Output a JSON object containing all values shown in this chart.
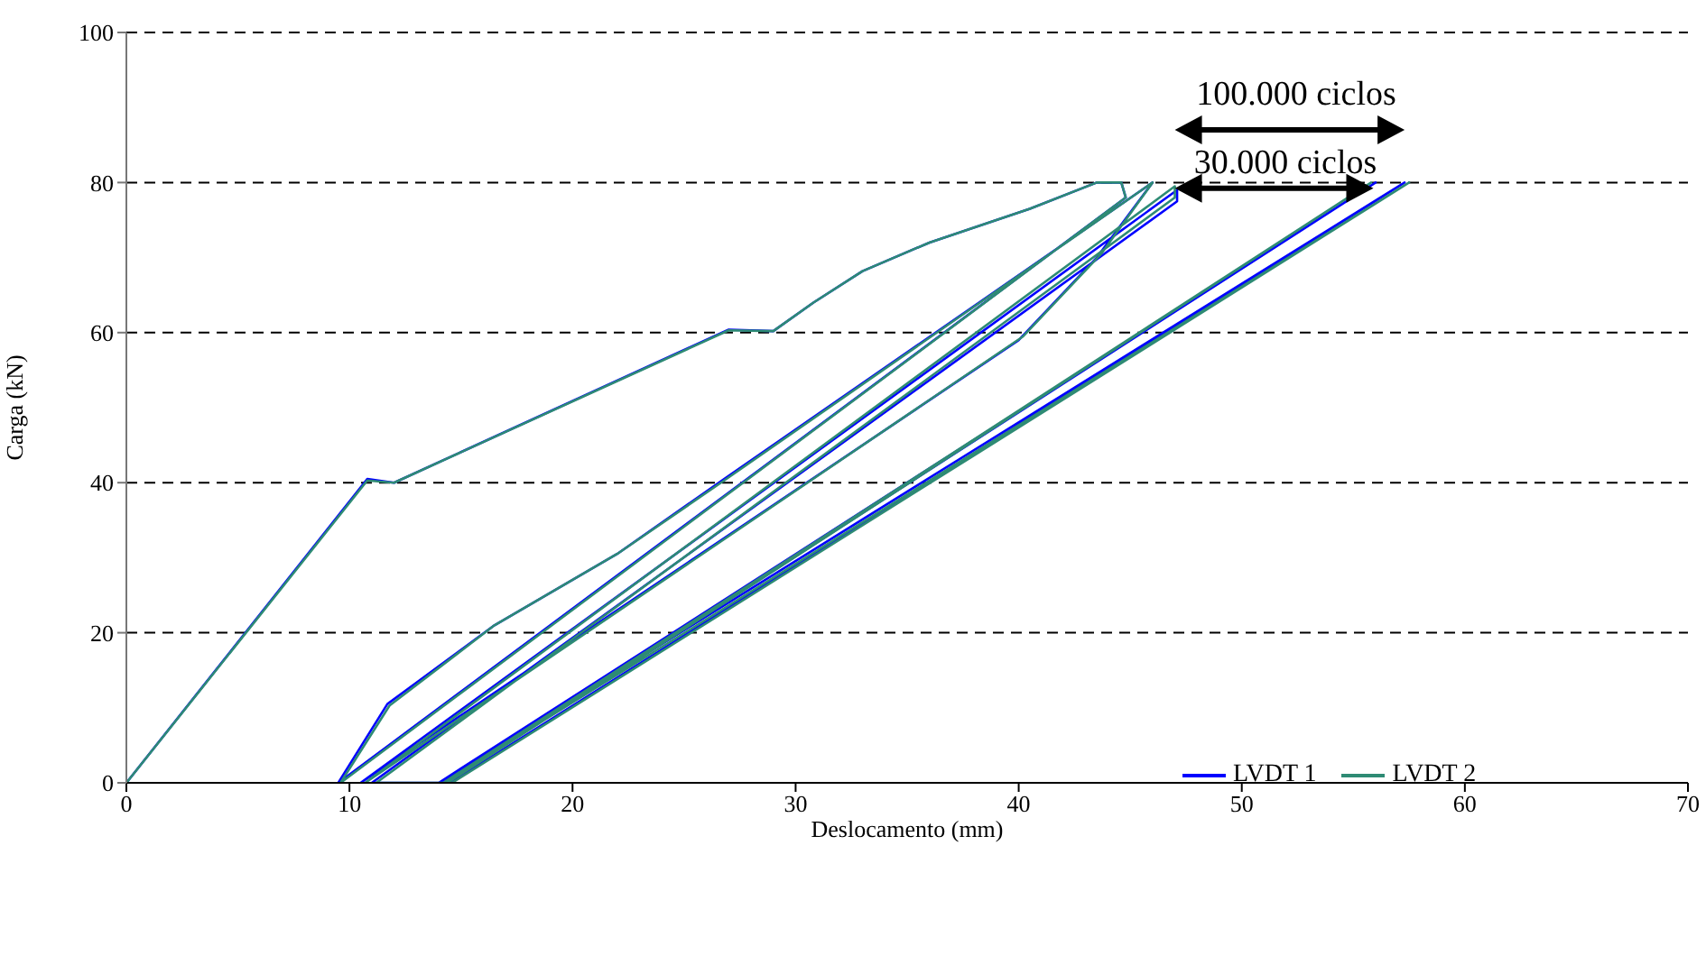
{
  "chart_data": {
    "type": "line",
    "xlabel": "Deslocamento (mm)",
    "ylabel": "Carga (kN)",
    "xlim": [
      0,
      70
    ],
    "xticks": [
      0,
      10,
      20,
      30,
      40,
      50,
      60,
      70
    ],
    "ylim": [
      0,
      100
    ],
    "yticks": [
      0,
      20,
      40,
      60,
      80,
      100
    ],
    "grid": "y",
    "legend": "bottom right",
    "marker": "none",
    "line_style": "solid",
    "series": [
      {
        "name": "LVDT 1",
        "color": "#0000ff",
        "x": [
          0,
          10.8,
          12,
          27,
          29,
          30.8,
          33,
          36,
          40.5,
          43.5,
          44.6,
          44.8,
          9.5,
          11.7,
          16.5,
          22,
          26.8,
          46,
          43.5,
          40,
          10.5,
          47.1,
          47.1,
          11,
          14.2,
          56,
          14,
          57.3,
          14.5
        ],
        "values": [
          0,
          40.5,
          40,
          60.4,
          60.2,
          64,
          68.2,
          72,
          76.5,
          80,
          80,
          78,
          0,
          10.5,
          21,
          30.5,
          40.5,
          80,
          70,
          59,
          0,
          79,
          77.5,
          0,
          0,
          80,
          0,
          80,
          0
        ]
      },
      {
        "name": "LVDT 2",
        "color": "#2e8b74",
        "x": [
          0,
          10.8,
          12,
          27,
          29,
          30.8,
          33,
          36,
          40.5,
          43.5,
          44.6,
          44.8,
          9.6,
          11.8,
          16.5,
          22,
          26.8,
          46,
          43.7,
          40.2,
          10.7,
          47,
          47,
          11.2,
          14.4,
          55.8,
          14.2,
          57.5,
          14.6
        ],
        "values": [
          0,
          40.3,
          40,
          60.3,
          60.2,
          64,
          68.2,
          72,
          76.5,
          80,
          80,
          78,
          0,
          10.3,
          21,
          30.5,
          40.3,
          80,
          70.5,
          59.5,
          0,
          79.5,
          78,
          0,
          0,
          80,
          0,
          80,
          0
        ]
      }
    ],
    "annotations": [
      "100.000 ciclos",
      "30.000 ciclos"
    ]
  }
}
